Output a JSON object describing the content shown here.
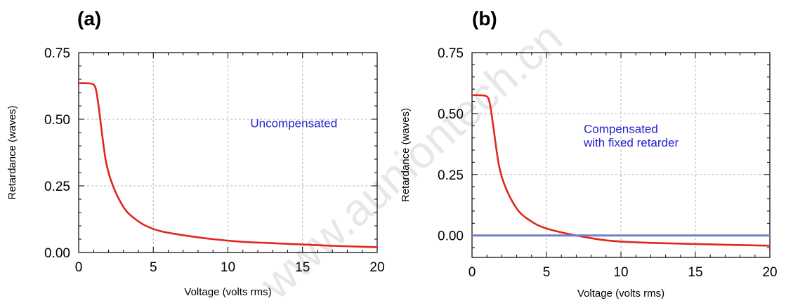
{
  "watermark": "www.auniontech.cn",
  "chart_data": [
    {
      "panel": "(a)",
      "type": "line",
      "xlabel": "Voltage (volts rms)",
      "ylabel": "Retardance (waves)",
      "xlim": [
        0,
        20
      ],
      "ylim": [
        0,
        0.75
      ],
      "xticks": [
        "0",
        "5",
        "10",
        "15",
        "20"
      ],
      "yticks": [
        "0.00",
        "0.25",
        "0.50",
        "0.75"
      ],
      "grid": true,
      "annotations": [
        {
          "text": "Uncompensated",
          "x": 11.5,
          "y": 0.47
        }
      ],
      "series": [
        {
          "color": "#e0261d",
          "x": [
            0,
            0.5,
            1.0,
            1.2,
            1.4,
            1.6,
            1.8,
            2.0,
            2.3,
            2.7,
            3.2,
            3.8,
            4.5,
            5.5,
            7,
            9,
            11,
            13,
            15,
            17,
            20
          ],
          "y": [
            0.635,
            0.635,
            0.63,
            0.6,
            0.52,
            0.43,
            0.35,
            0.3,
            0.25,
            0.2,
            0.155,
            0.125,
            0.1,
            0.08,
            0.065,
            0.05,
            0.04,
            0.035,
            0.03,
            0.025,
            0.02
          ]
        }
      ]
    },
    {
      "panel": "(b)",
      "type": "line",
      "xlabel": "Voltage (volts rms)",
      "ylabel": "Retardance (waves)",
      "xlim": [
        0,
        20
      ],
      "ylim": [
        -0.09,
        0.75
      ],
      "xticks": [
        "0",
        "5",
        "10",
        "15",
        "20"
      ],
      "yticks": [
        "0.00",
        "0.25",
        "0.50",
        "0.75"
      ],
      "grid": true,
      "annotations": [
        {
          "text": "Compensated",
          "x": 7.5,
          "y": 0.42
        },
        {
          "text": "with fixed retarder",
          "x": 7.5,
          "y": 0.365
        }
      ],
      "series": [
        {
          "color": "#e0261d",
          "x": [
            0,
            0.5,
            1.0,
            1.2,
            1.4,
            1.6,
            1.8,
            2.0,
            2.3,
            2.7,
            3.2,
            3.8,
            4.5,
            5.5,
            7,
            9,
            11,
            13,
            15,
            17,
            20
          ],
          "y": [
            0.575,
            0.575,
            0.57,
            0.54,
            0.46,
            0.37,
            0.29,
            0.24,
            0.19,
            0.14,
            0.095,
            0.065,
            0.04,
            0.02,
            0.0,
            -0.02,
            -0.028,
            -0.032,
            -0.035,
            -0.038,
            -0.042
          ]
        },
        {
          "color": "#7080c8",
          "x": [
            0,
            20
          ],
          "y": [
            0,
            0
          ]
        }
      ]
    }
  ]
}
